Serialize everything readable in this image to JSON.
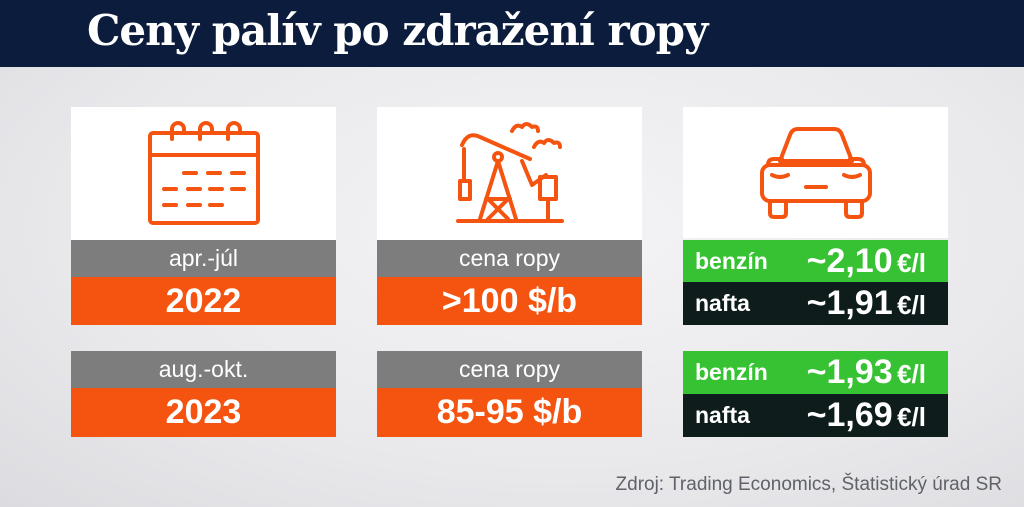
{
  "title": "Ceny palív po zdražení ropy",
  "rows": [
    {
      "period": "apr.-júl",
      "year": "2022",
      "oil_label": "cena ropy",
      "oil_price": ">100 $/b",
      "benzin_label": "benzín",
      "benzin_price": "~2,10",
      "nafta_label": "nafta",
      "nafta_price": "~1,91"
    },
    {
      "period": "aug.-okt.",
      "year": "2023",
      "oil_label": "cena ropy",
      "oil_price": "85-95 $/b",
      "benzin_label": "benzín",
      "benzin_price": "~1,93",
      "nafta_label": "nafta",
      "nafta_price": "~1,69"
    }
  ],
  "unit": "€/l",
  "icons": [
    "calendar-icon",
    "oil-pump-icon",
    "car-icon"
  ],
  "colors": {
    "header": "#0c1c3d",
    "orange": "#f4540f",
    "grey": "#7d7d7d",
    "green": "#36c232",
    "dark": "#0f1c1c"
  },
  "source": "Zdroj: Trading Economics, Štatistický úrad SR"
}
